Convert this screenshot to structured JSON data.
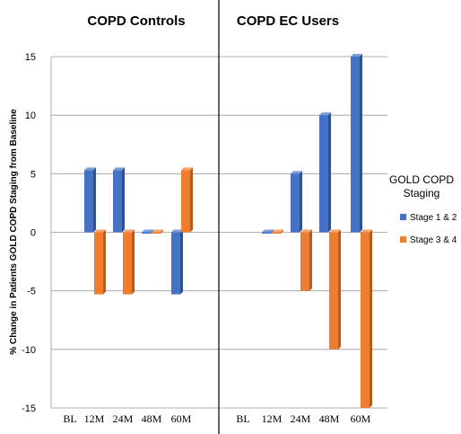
{
  "chart_data": {
    "type": "bar",
    "ylabel": "% Change  in Patients GOLD COPD Staging from Baseline",
    "ylim": [
      -15,
      15
    ],
    "yticks": [
      15,
      10,
      5,
      0,
      -5,
      -10,
      -15
    ],
    "grid": true,
    "legend": {
      "title": "GOLD COPD Staging",
      "placement": "right"
    },
    "panels": [
      {
        "title": "COPD Controls",
        "categories": [
          "BL",
          "12M",
          "24M",
          "48M",
          "60M"
        ],
        "series": [
          {
            "name": "Stage 1 & 2",
            "values": [
              0,
              5.3,
              5.3,
              0,
              -5.3
            ]
          },
          {
            "name": "Stage 3 & 4",
            "values": [
              0,
              -5.3,
              -5.3,
              0,
              5.3
            ]
          }
        ]
      },
      {
        "title": "COPD EC Users",
        "categories": [
          "BL",
          "12M",
          "24M",
          "48M",
          "60M"
        ],
        "series": [
          {
            "name": "Stage 1 & 2",
            "values": [
              0,
              0,
              5,
              10,
              15
            ]
          },
          {
            "name": "Stage 3 & 4",
            "values": [
              0,
              0,
              -5,
              -10,
              -15
            ]
          }
        ]
      }
    ],
    "colors": {
      "Stage 1 & 2": "#4472C4",
      "Stage 3 & 4": "#ED7D31"
    }
  }
}
